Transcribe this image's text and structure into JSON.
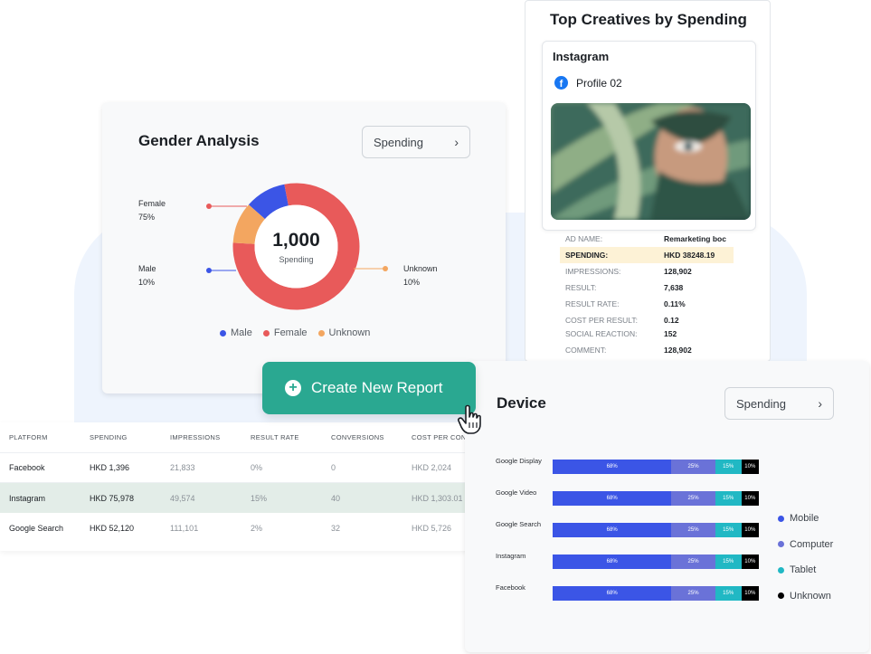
{
  "colors": {
    "male": "#3b55e6",
    "female": "#e85a5a",
    "unknown": "#f3a660",
    "accent": "#2aa891",
    "mobile": "#3b55e6",
    "computer": "#6a72d8",
    "tablet": "#21b8c4",
    "device_unknown": "#000000"
  },
  "gender": {
    "title": "Gender Analysis",
    "select": "Spending",
    "total": "1,000",
    "total_label": "Spending",
    "callouts": [
      {
        "name": "Female",
        "pct": "75%"
      },
      {
        "name": "Male",
        "pct": "10%"
      },
      {
        "name": "Unknown",
        "pct": "10%"
      }
    ],
    "legend": [
      "Male",
      "Female",
      "Unknown"
    ]
  },
  "creatives": {
    "title": "Top Creatives by Spending",
    "platform": "Instagram",
    "profile": "Profile 02",
    "stats": [
      {
        "k": "AD NAME:",
        "v": "Remarketing boc"
      },
      {
        "k": "SPENDING:",
        "v": "HKD 38248.19"
      },
      {
        "k": "IMPRESSIONS:",
        "v": "128,902"
      },
      {
        "k": "RESULT:",
        "v": "7,638"
      },
      {
        "k": "RESULT RATE:",
        "v": "0.11%"
      },
      {
        "k": "COST PER RESULT:",
        "v": "0.12"
      },
      {
        "k": "SOCIAL REACTION:",
        "v": "152"
      },
      {
        "k": "COMMENT:",
        "v": "128,902"
      }
    ]
  },
  "create_button": "Create New Report",
  "table": {
    "headers": [
      "PLATFORM",
      "SPENDING",
      "IMPRESSIONS",
      "RESULT RATE",
      "CONVERSIONS",
      "COST PER CONV."
    ],
    "rows": [
      [
        "Facebook",
        "HKD 1,396",
        "21,833",
        "0%",
        "0",
        "HKD 2,024"
      ],
      [
        "Instagram",
        "HKD 75,978",
        "49,574",
        "15%",
        "40",
        "HKD 1,303.01"
      ],
      [
        "Google Search",
        "HKD 52,120",
        "111,101",
        "2%",
        "32",
        "HKD 5,726"
      ]
    ]
  },
  "device": {
    "title": "Device",
    "select": "Spending",
    "rows": [
      "Google Display",
      "Google  Video",
      "Google Search",
      "Instagram",
      "Facebook"
    ],
    "segments": [
      "68%",
      "25%",
      "15%",
      "10%"
    ],
    "legend": [
      "Mobile",
      "Computer",
      "Tablet",
      "Unknown"
    ]
  },
  "chart_data": [
    {
      "type": "pie",
      "title": "Gender Analysis",
      "categories": [
        "Male",
        "Female",
        "Unknown"
      ],
      "values": [
        10,
        75,
        10
      ],
      "center_value": "1,000",
      "center_label": "Spending"
    },
    {
      "type": "bar",
      "title": "Device",
      "categories": [
        "Google Display",
        "Google  Video",
        "Google Search",
        "Instagram",
        "Facebook"
      ],
      "series": [
        {
          "name": "Mobile",
          "values": [
            68,
            68,
            68,
            68,
            68
          ]
        },
        {
          "name": "Computer",
          "values": [
            25,
            25,
            25,
            25,
            25
          ]
        },
        {
          "name": "Tablet",
          "values": [
            15,
            15,
            15,
            15,
            15
          ]
        },
        {
          "name": "Unknown",
          "values": [
            10,
            10,
            10,
            10,
            10
          ]
        }
      ],
      "stacked": true
    }
  ]
}
